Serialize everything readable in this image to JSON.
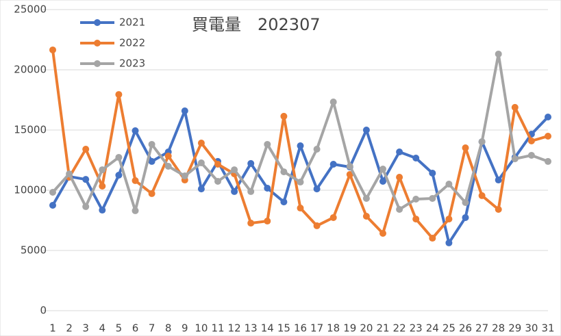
{
  "chart_data": {
    "type": "line",
    "title": "買電量　202307",
    "categories": [
      "1",
      "2",
      "3",
      "4",
      "5",
      "6",
      "7",
      "8",
      "9",
      "10",
      "11",
      "12",
      "13",
      "14",
      "15",
      "16",
      "17",
      "18",
      "19",
      "20",
      "21",
      "22",
      "23",
      "24",
      "25",
      "26",
      "27",
      "28",
      "29",
      "30",
      "31"
    ],
    "series": [
      {
        "name": "2021",
        "color": "#4472c4",
        "values": [
          8750,
          11140,
          10900,
          8350,
          11250,
          14940,
          12390,
          13180,
          16590,
          10110,
          12390,
          9890,
          12220,
          10170,
          9030,
          13690,
          10110,
          12160,
          11930,
          15000,
          10740,
          13180,
          12670,
          11420,
          5630,
          7730,
          14030,
          10850,
          12730,
          14660,
          16080
        ]
      },
      {
        "name": "2022",
        "color": "#ed7d31",
        "values": [
          21650,
          11080,
          13410,
          10340,
          17950,
          10800,
          9720,
          12840,
          10850,
          13920,
          12160,
          11360,
          7270,
          7440,
          16140,
          8520,
          7050,
          7730,
          11310,
          7840,
          6420,
          11080,
          7610,
          6020,
          7610,
          13520,
          9550,
          8410,
          16880,
          14090,
          14490
        ]
      },
      {
        "name": "2023",
        "color": "#a5a5a5",
        "values": [
          9830,
          11360,
          8640,
          11700,
          12730,
          8300,
          13810,
          11990,
          11190,
          12270,
          10740,
          11700,
          9890,
          13810,
          11530,
          10680,
          13410,
          17330,
          11990,
          9320,
          11760,
          8410,
          9260,
          9320,
          10510,
          8980,
          14030,
          21310,
          12610,
          12900,
          12390
        ]
      }
    ],
    "ylim": [
      0,
      25000
    ],
    "yticks": [
      0,
      5000,
      10000,
      15000,
      20000,
      25000
    ],
    "grid": true,
    "legend": "upper-left"
  }
}
